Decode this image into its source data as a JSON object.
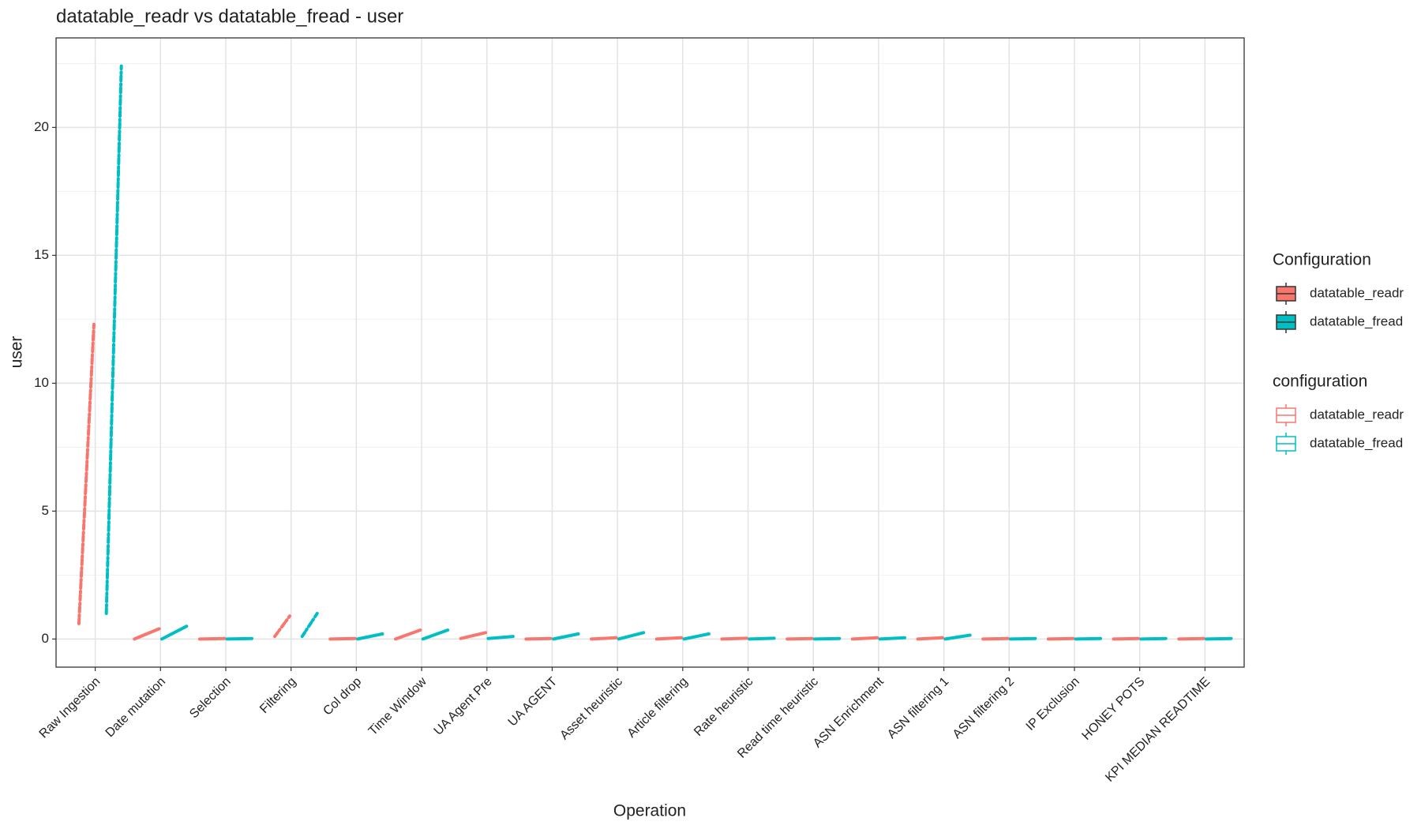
{
  "chart_data": {
    "type": "strip",
    "title": "datatable_readr vs datatable_fread - user",
    "x_label": "Operation",
    "y_label": "user",
    "categories": [
      "Raw Ingestion",
      "Date mutation",
      "Selection",
      "Filtering",
      "Col drop",
      "Time Window",
      "UA Agent Pre",
      "UA AGENT",
      "Asset heuristic",
      "Article filtering",
      "Rate heuristic",
      "Read time heuristic",
      "ASN Enrichment",
      "ASN filtering 1",
      "ASN filtering 2",
      "IP Exclusion",
      "HONEY POTS",
      "KPI MEDIAN READTIME"
    ],
    "series": [
      {
        "name": "datatable_readr",
        "color": "#f8766d",
        "low": [
          0.6,
          0,
          0,
          0.1,
          0,
          0,
          0.02,
          0,
          0,
          0,
          0,
          0,
          0,
          0,
          0,
          0,
          0,
          0
        ],
        "high": [
          12.3,
          0.4,
          0.02,
          0.9,
          0.02,
          0.35,
          0.25,
          0.02,
          0.05,
          0.05,
          0.03,
          0.02,
          0.05,
          0.05,
          0.02,
          0.02,
          0.02,
          0.02
        ]
      },
      {
        "name": "datatable_fread",
        "color": "#00bfc4",
        "low": [
          1.0,
          0,
          0,
          0.1,
          0,
          0,
          0.02,
          0,
          0,
          0,
          0,
          0,
          0,
          0,
          0,
          0,
          0,
          0
        ],
        "high": [
          22.4,
          0.5,
          0.02,
          1.0,
          0.2,
          0.35,
          0.1,
          0.2,
          0.25,
          0.2,
          0.03,
          0.02,
          0.05,
          0.15,
          0.02,
          0.02,
          0.02,
          0.02
        ]
      }
    ],
    "ylim": [
      -1.1,
      23.5
    ],
    "yticks": [
      0,
      5,
      10,
      15,
      20
    ],
    "y_minor_ticks": [
      2.5,
      7.5,
      12.5,
      17.5,
      22.5
    ],
    "grid": true,
    "legends": [
      {
        "title": "Configuration",
        "style": "filled",
        "entries": [
          "datatable_readr",
          "datatable_fread"
        ]
      },
      {
        "title": "configuration",
        "style": "outline",
        "entries": [
          "datatable_readr",
          "datatable_fread"
        ]
      }
    ]
  }
}
